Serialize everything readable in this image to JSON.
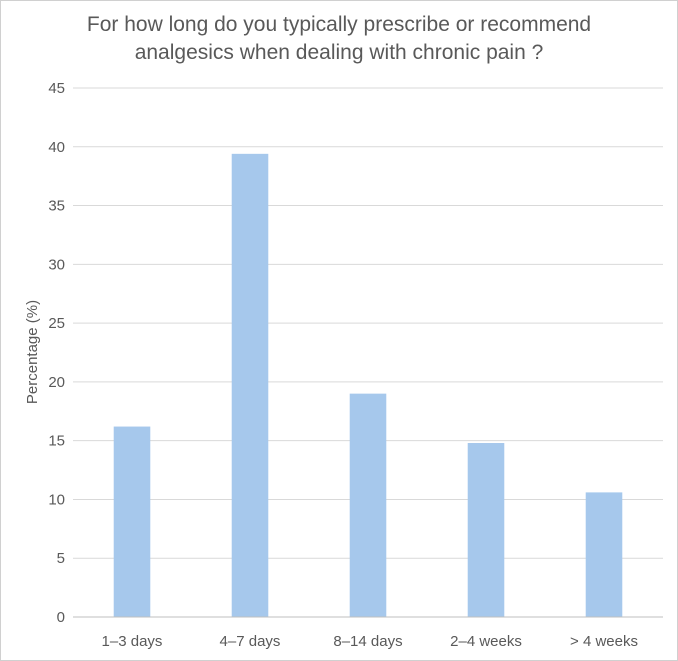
{
  "chart_data": {
    "type": "bar",
    "title_lines": [
      "For how long do you typically prescribe or recommend",
      "analgesics when dealing with chronic pain ?"
    ],
    "xlabel": "",
    "ylabel": "Percentage (%)",
    "categories": [
      "1–3 days",
      "4–7 days",
      "8–14 days",
      "2–4 weeks",
      "> 4 weeks"
    ],
    "values": [
      16.2,
      39.4,
      19.0,
      14.8,
      10.6
    ],
    "ylim": [
      0,
      45
    ],
    "yticks": [
      0,
      5,
      10,
      15,
      20,
      25,
      30,
      35,
      40,
      45
    ],
    "grid": true,
    "legend": "none",
    "colors": {
      "bar": "#a6c8ec",
      "grid": "#d9d9d9",
      "axis": "#bfbfbf",
      "text": "#595959"
    }
  }
}
